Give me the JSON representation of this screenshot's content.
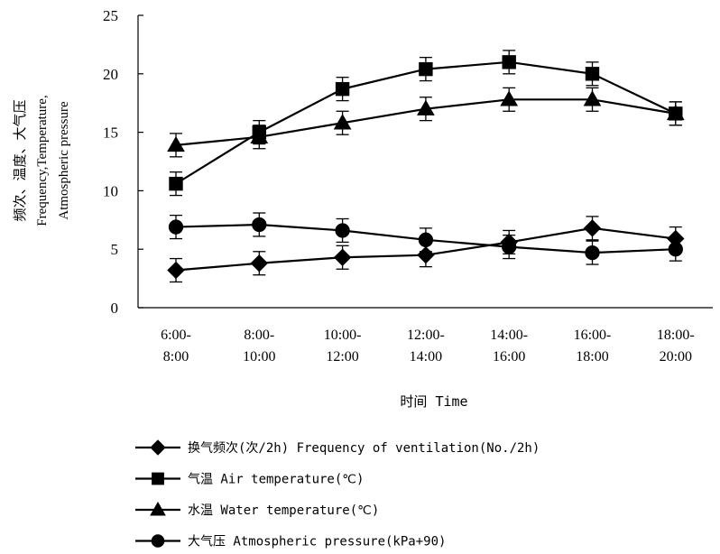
{
  "chart_data": {
    "type": "line",
    "categories": [
      [
        "6:00-",
        "8:00"
      ],
      [
        "8:00-",
        "10:00"
      ],
      [
        "10:00-",
        "12:00"
      ],
      [
        "12:00-",
        "14:00"
      ],
      [
        "14:00-",
        "16:00"
      ],
      [
        "16:00-",
        "18:00"
      ],
      [
        "18:00-",
        "20:00"
      ]
    ],
    "xlabel": "时间 Time",
    "ylabel": [
      "频次、温度、大气压",
      "Frequency,Temperature,",
      "Atmospheric pressure"
    ],
    "ylim": [
      0,
      25
    ],
    "yticks": [
      0,
      5,
      10,
      15,
      20,
      25
    ],
    "grid": false,
    "legend_position": "bottom",
    "series": [
      {
        "name": "换气频次(次/2h) Frequency of ventilation(No./2h)",
        "marker": "diamond",
        "values": [
          3.2,
          3.8,
          4.3,
          4.5,
          5.6,
          6.8,
          5.9
        ],
        "errors": [
          1.0,
          1.0,
          1.0,
          1.0,
          1.0,
          1.0,
          1.0
        ]
      },
      {
        "name": "气温 Air temperature(℃)",
        "marker": "square",
        "values": [
          10.6,
          15.0,
          18.7,
          20.4,
          21.0,
          20.0,
          16.6
        ],
        "errors": [
          1.0,
          1.0,
          1.0,
          1.0,
          1.0,
          1.0,
          1.0
        ]
      },
      {
        "name": "水温 Water temperature(℃)",
        "marker": "triangle",
        "values": [
          13.9,
          14.6,
          15.8,
          17.0,
          17.8,
          17.8,
          16.6
        ],
        "errors": [
          1.0,
          1.0,
          1.0,
          1.0,
          1.0,
          1.0,
          1.0
        ]
      },
      {
        "name": "大气压 Atmospheric pressure(kPa+90)",
        "marker": "circle",
        "values": [
          6.9,
          7.1,
          6.6,
          5.8,
          5.2,
          4.7,
          5.0
        ],
        "errors": [
          1.0,
          1.0,
          1.0,
          1.0,
          1.0,
          1.0,
          1.0
        ]
      }
    ]
  }
}
